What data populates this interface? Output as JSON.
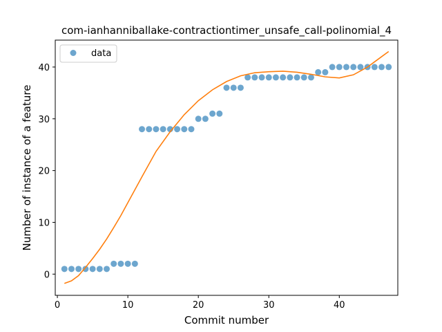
{
  "chart_data": {
    "type": "scatter",
    "title": "com-ianhanniballake-contractiontimer_unsafe_call-polinomial_4",
    "xlabel": "Commit number",
    "ylabel": "Number of instance of a feature",
    "xlim": [
      -0.3,
      48.3
    ],
    "ylim": [
      -4.1,
      45.2
    ],
    "xticks": [
      0,
      10,
      20,
      30,
      40
    ],
    "yticks": [
      0,
      10,
      20,
      30,
      40
    ],
    "grid": false,
    "legend": {
      "position": "top-left",
      "entries": [
        "data"
      ]
    },
    "series": [
      {
        "name": "data",
        "kind": "points",
        "color": "#1f77b4",
        "x": [
          1,
          2,
          3,
          4,
          5,
          6,
          7,
          8,
          9,
          10,
          11,
          12,
          13,
          14,
          15,
          16,
          17,
          18,
          19,
          20,
          21,
          22,
          23,
          24,
          25,
          26,
          27,
          28,
          29,
          30,
          31,
          32,
          33,
          34,
          35,
          36,
          37,
          38,
          39,
          40,
          41,
          42,
          43,
          44,
          45,
          46,
          47
        ],
        "y": [
          1,
          1,
          1,
          1,
          1,
          1,
          1,
          2,
          2,
          2,
          2,
          28,
          28,
          28,
          28,
          28,
          28,
          28,
          28,
          30,
          30,
          31,
          31,
          36,
          36,
          36,
          38,
          38,
          38,
          38,
          38,
          38,
          38,
          38,
          38,
          38,
          39,
          39,
          40,
          40,
          40,
          40,
          40,
          40,
          40,
          40,
          40
        ]
      },
      {
        "name": "",
        "kind": "line",
        "color": "#ff7f0e",
        "x": [
          1,
          2,
          3,
          4,
          5,
          6,
          7,
          8,
          9,
          10,
          12,
          14,
          16,
          18,
          20,
          22,
          24,
          26,
          28,
          30,
          32,
          34,
          36,
          38,
          40,
          42,
          44,
          45,
          46,
          47
        ],
        "y": [
          -1.8,
          -1.3,
          -0.3,
          1.3,
          3.0,
          4.8,
          6.8,
          9.0,
          11.3,
          13.8,
          18.8,
          23.7,
          27.5,
          30.8,
          33.5,
          35.6,
          37.2,
          38.3,
          38.9,
          39.1,
          39.2,
          39.0,
          38.6,
          38.1,
          37.9,
          38.5,
          40.0,
          41.0,
          42.0,
          43.0
        ]
      }
    ]
  }
}
